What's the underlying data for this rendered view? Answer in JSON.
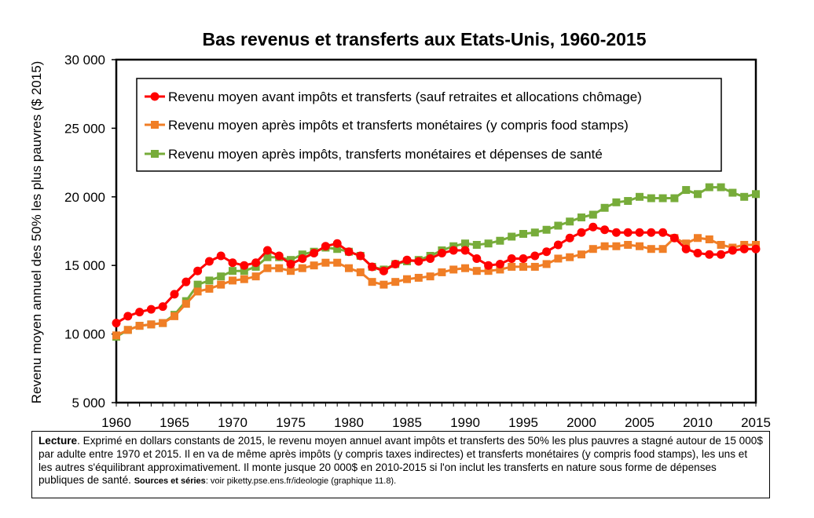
{
  "chart_data": {
    "type": "line",
    "title": "Bas revenus et transferts aux Etats-Unis, 1960-2015",
    "ylabel": "Revenu moyen annuel des 50% les plus pauvres ($ 2015)",
    "xlabel": "",
    "xlim": [
      1960,
      2015
    ],
    "ylim": [
      5000,
      30000
    ],
    "x_ticks": [
      1960,
      1965,
      1970,
      1975,
      1980,
      1985,
      1990,
      1995,
      2000,
      2005,
      2010,
      2015
    ],
    "x_tick_labels": [
      "1960",
      "1965",
      "1970",
      "1975",
      "1980",
      "1985",
      "1990",
      "1995",
      "2000",
      "2005",
      "2010",
      "2015"
    ],
    "y_ticks": [
      5000,
      10000,
      15000,
      20000,
      25000,
      30000
    ],
    "y_tick_labels": [
      "5 000",
      "10 000",
      "15 000",
      "20 000",
      "25 000",
      "30 000"
    ],
    "grid": false,
    "legend_position": "top-left",
    "x": [
      1960,
      1961,
      1962,
      1963,
      1964,
      1965,
      1966,
      1967,
      1968,
      1969,
      1970,
      1971,
      1972,
      1973,
      1974,
      1975,
      1976,
      1977,
      1978,
      1979,
      1980,
      1981,
      1982,
      1983,
      1984,
      1985,
      1986,
      1987,
      1988,
      1989,
      1990,
      1991,
      1992,
      1993,
      1994,
      1995,
      1996,
      1997,
      1998,
      1999,
      2000,
      2001,
      2002,
      2003,
      2004,
      2005,
      2006,
      2007,
      2008,
      2009,
      2010,
      2011,
      2012,
      2013,
      2014,
      2015
    ],
    "series": [
      {
        "name": "Revenu moyen avant impôts et transferts (sauf retraites et allocations chômage)",
        "color": "#ff0000",
        "marker": "circle",
        "values": [
          10800,
          11300,
          11600,
          11800,
          12000,
          12900,
          13800,
          14600,
          15300,
          15700,
          15200,
          15000,
          15200,
          16100,
          15700,
          15100,
          15500,
          15900,
          16400,
          16600,
          16000,
          15700,
          14900,
          14600,
          15100,
          15400,
          15300,
          15500,
          15900,
          16100,
          16100,
          15500,
          15000,
          15100,
          15500,
          15500,
          15700,
          16000,
          16500,
          17000,
          17400,
          17800,
          17600,
          17400,
          17400,
          17400,
          17400,
          17400,
          17000,
          16200,
          15900,
          15800,
          15800,
          16100,
          16200,
          16200
        ]
      },
      {
        "name": "Revenu moyen après impôts et transferts monétaires (y compris food stamps)",
        "color": "#f07e26",
        "marker": "square",
        "values": [
          9900,
          10300,
          10600,
          10700,
          10800,
          11300,
          12200,
          13100,
          13300,
          13600,
          13900,
          14000,
          14200,
          14800,
          14800,
          14600,
          14800,
          15000,
          15200,
          15200,
          14800,
          14500,
          13800,
          13600,
          13800,
          14000,
          14100,
          14200,
          14500,
          14700,
          14800,
          14600,
          14600,
          14700,
          14900,
          14900,
          14900,
          15100,
          15500,
          15600,
          15800,
          16200,
          16400,
          16400,
          16500,
          16400,
          16200,
          16200,
          17000,
          16600,
          17000,
          16900,
          16500,
          16300,
          16500,
          16500
        ]
      },
      {
        "name": "Revenu moyen après impôts, transferts monétaires et dépenses de santé",
        "color": "#77ac3a",
        "marker": "square",
        "values": [
          9800,
          10300,
          10600,
          10700,
          10800,
          11400,
          12400,
          13600,
          13900,
          14200,
          14600,
          14600,
          14900,
          15600,
          15600,
          15400,
          15800,
          16000,
          16300,
          16200,
          16000,
          15700,
          14900,
          14700,
          15100,
          15300,
          15400,
          15700,
          16100,
          16400,
          16600,
          16500,
          16600,
          16800,
          17100,
          17300,
          17400,
          17600,
          17900,
          18200,
          18500,
          18700,
          19200,
          19600,
          19700,
          20000,
          19900,
          19900,
          19900,
          20500,
          20200,
          20700,
          20700,
          20300,
          20000,
          20200
        ]
      }
    ]
  },
  "caption": {
    "lead": "Lecture",
    "body": ". Exprimé en dollars constants de 2015, le revenu moyen annuel avant impôts et transferts des 50% les plus pauvres a stagné autour de 15 000$ par adulte entre 1970 et 2015. Il en va de même après impôts (y compris taxes indirectes) et transferts monétaires (y compris food stamps), les uns et les autres s'équilibrant approximativement. Il monte jusque 20 000$ en 2010-2015 si l'on inclut les transferts en nature sous forme de dépenses publiques de santé.",
    "sources_label": "Sources et séries",
    "sources_text": ": voir piketty.pse.ens.fr/ideologie (graphique 11.8)."
  }
}
